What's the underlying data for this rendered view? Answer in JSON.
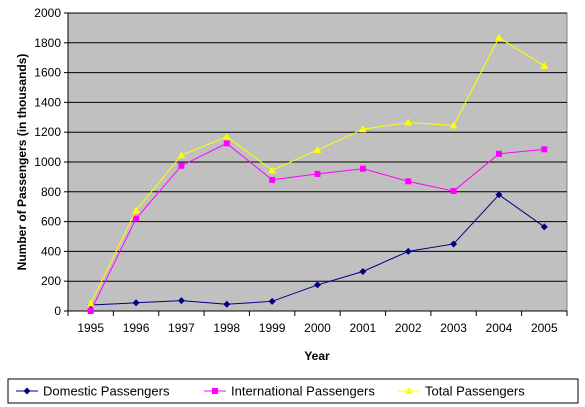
{
  "chart_data": {
    "type": "line",
    "categories": [
      "1995",
      "1996",
      "1997",
      "1998",
      "1999",
      "2000",
      "2001",
      "2002",
      "2003",
      "2004",
      "2005"
    ],
    "xlabel": "Year",
    "ylabel": "Number of Passengers  (in thousands)",
    "ylim": [
      0,
      2000
    ],
    "yticks": [
      0,
      200,
      400,
      600,
      800,
      1000,
      1200,
      1400,
      1600,
      1800,
      2000
    ],
    "grid": "horizontal",
    "legend_position": "bottom",
    "series": [
      {
        "name": "Domestic Passengers",
        "color": "#000080",
        "marker": "diamond",
        "values": [
          40,
          55,
          70,
          45,
          65,
          175,
          265,
          400,
          450,
          780,
          565
        ]
      },
      {
        "name": "International Passengers",
        "color": "#FF00FF",
        "marker": "square",
        "values": [
          0,
          620,
          975,
          1125,
          880,
          920,
          955,
          870,
          805,
          1055,
          1085
        ]
      },
      {
        "name": "Total Passengers",
        "color": "#FFFF00",
        "marker": "triangle",
        "values": [
          50,
          675,
          1045,
          1170,
          945,
          1080,
          1220,
          1265,
          1245,
          1835,
          1645
        ]
      }
    ]
  }
}
